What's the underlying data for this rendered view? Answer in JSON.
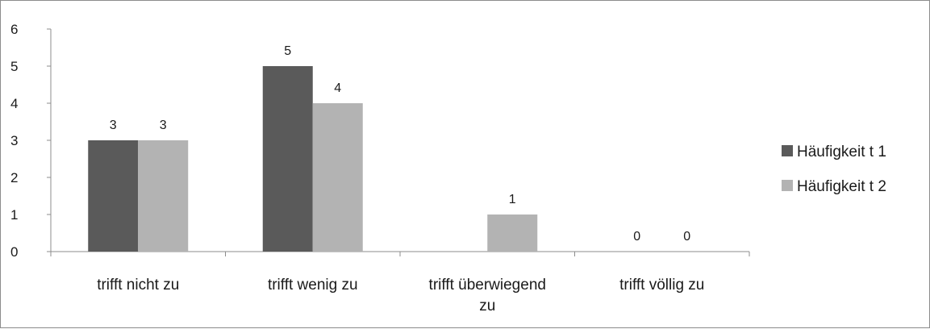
{
  "chart_data": {
    "type": "bar",
    "title": "",
    "xlabel": "",
    "ylabel": "",
    "ylim": [
      0,
      6
    ],
    "yticks": [
      "0",
      "1",
      "2",
      "3",
      "4",
      "5",
      "6"
    ],
    "categories": [
      [
        "trifft nicht zu"
      ],
      [
        "trifft wenig zu"
      ],
      [
        "trifft überwiegend",
        "zu"
      ],
      [
        "trifft völlig zu"
      ]
    ],
    "series": [
      {
        "name": "Häufigkeit t 1",
        "color": "#5a5a5a",
        "values": [
          3,
          5,
          null,
          0
        ],
        "labels": [
          "3",
          "5",
          "",
          "0"
        ]
      },
      {
        "name": "Häufigkeit t 2",
        "color": "#b3b3b3",
        "values": [
          3,
          4,
          1,
          0
        ],
        "labels": [
          "3",
          "4",
          "1",
          "0"
        ]
      }
    ],
    "grid": false,
    "legend_position": "right"
  }
}
